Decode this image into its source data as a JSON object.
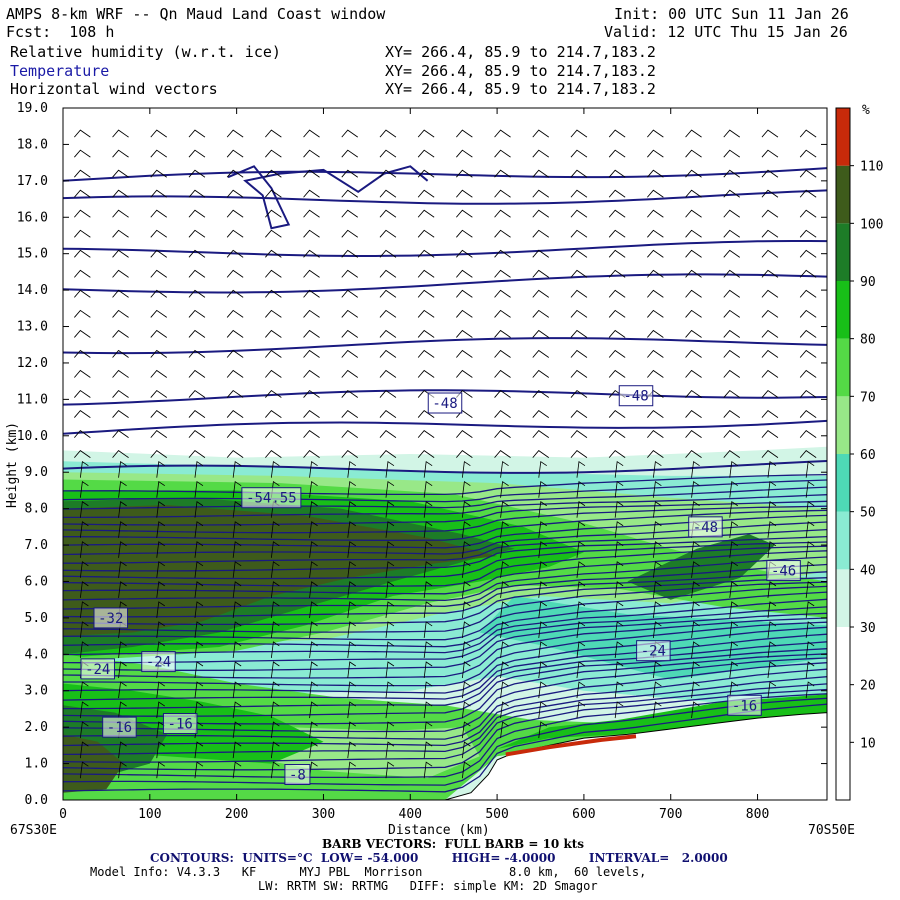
{
  "header": {
    "title": "AMPS 8-km WRF -- Qn Maud Land Coast window",
    "forecast": "Fcst:  108 h",
    "init": "Init: 00 UTC Sun 11 Jan 26",
    "valid": "Valid: 12 UTC Thu 15 Jan 26",
    "field1": "Relative humidity (w.r.t. ice)",
    "field2": "Temperature",
    "field3": "Horizontal wind vectors",
    "xy1": "XY= 266.4, 85.9 to 214.7,183.2",
    "xy2": "XY= 266.4, 85.9 to 214.7,183.2",
    "xy3": "XY= 266.4, 85.9 to 214.7,183.2"
  },
  "footer": {
    "start_point": "67S30E",
    "end_point": "70S50E",
    "barb_vectors": "BARB VECTORS:  FULL BARB = 10 kts",
    "contours": "CONTOURS:  UNITS=°C  LOW= -54.000        HIGH= -4.0000        INTERVAL=   2.0000",
    "model_info_1": "Model Info: V4.3.3   KF      MYJ PBL  Morrison            8.0 km,  60 levels,",
    "model_info_2": "LW: RRTM SW: RRTMG   DIFF: simple KM: 2D Smagor"
  },
  "colors": {
    "bin_10_20": "#ffffff",
    "bin_20_30": "#ffffff",
    "bin_30_40": "#d2f5e6",
    "bin_40_50": "#8aebd3",
    "bin_50_60": "#4ed9b6",
    "bin_60_70": "#98e888",
    "bin_70_80": "#54da46",
    "bin_80_90": "#18bf18",
    "bin_90_100": "#1d7c27",
    "bin_100_110": "#3e5b1b",
    "bin_110_plus": "#c82a0a",
    "contour_line": "#1a1a80",
    "terrain": "#ffffff",
    "wind_barb": "#000000"
  },
  "chart_data": {
    "type": "cross-section",
    "xlabel": "Distance (km)",
    "ylabel": "Height (km)",
    "xlim": [
      0,
      880
    ],
    "ylim": [
      0,
      19
    ],
    "x_ticks": [
      0,
      100,
      200,
      300,
      400,
      500,
      600,
      700,
      800
    ],
    "y_ticks": [
      "0.0",
      "1.0",
      "2.0",
      "3.0",
      "4.0",
      "5.0",
      "6.0",
      "7.0",
      "8.0",
      "9.0",
      "10.0",
      "11.0",
      "12.0",
      "13.0",
      "14.0",
      "15.0",
      "16.0",
      "17.0",
      "18.0",
      "19.0"
    ],
    "colorbar": {
      "unit": "%",
      "tick_labels": [
        "10",
        "20",
        "30",
        "40",
        "50",
        "60",
        "70",
        "80",
        "90",
        "100",
        "110"
      ]
    },
    "contour_labels": [
      {
        "text": "-48",
        "x": 440,
        "y": 10.9
      },
      {
        "text": "-48",
        "x": 660,
        "y": 11.1
      },
      {
        "text": "-48",
        "x": 740,
        "y": 7.5
      },
      {
        "text": "-54.55",
        "x": 240,
        "y": 8.3
      },
      {
        "text": "-46",
        "x": 830,
        "y": 6.3
      },
      {
        "text": "-32",
        "x": 55,
        "y": 5.0
      },
      {
        "text": "-24",
        "x": 40,
        "y": 3.6
      },
      {
        "text": "-24",
        "x": 110,
        "y": 3.8
      },
      {
        "text": "-24",
        "x": 680,
        "y": 4.1
      },
      {
        "text": "-16",
        "x": 65,
        "y": 2.0
      },
      {
        "text": "-16",
        "x": 135,
        "y": 2.1
      },
      {
        "text": "-16",
        "x": 785,
        "y": 2.6
      },
      {
        "text": "-8",
        "x": 270,
        "y": 0.7
      }
    ],
    "terrain_profile": {
      "x": [
        0,
        440,
        470,
        490,
        500,
        520,
        560,
        600,
        650,
        700,
        750,
        800,
        850,
        880
      ],
      "height": [
        0,
        0,
        0.2,
        0.7,
        1.1,
        1.3,
        1.5,
        1.7,
        1.8,
        1.95,
        2.1,
        2.25,
        2.35,
        2.4
      ]
    },
    "temperature_isolines_km": [
      17.0,
      16.4,
      15.0,
      14.0,
      12.4,
      11.0,
      10.1,
      9.0
    ]
  }
}
